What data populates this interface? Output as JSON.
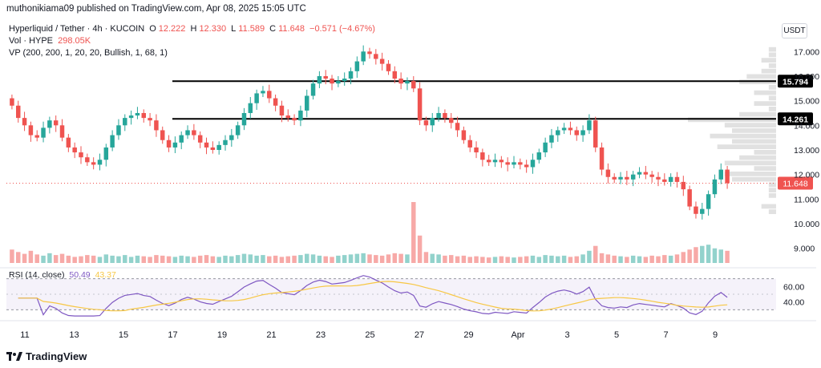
{
  "publisher_line": "muthonikiama09 published on TradingView.com, Apr 08, 2025 15:05 UTC",
  "legend": {
    "symbol": "Hyperliquid / Tether · 4h · KUCOIN",
    "o_label": "O",
    "o_value": "12.222",
    "h_label": "H",
    "h_value": "12.330",
    "l_label": "L",
    "l_value": "11.589",
    "c_label": "C",
    "c_value": "11.648",
    "change": "−0.571 (−4.67%)",
    "vol_label": "Vol · HYPE",
    "vol_value": "298.05K",
    "vp_label": "VP (200, 200, 1, 20, 20, Bullish, 1, 68, 1)"
  },
  "rsi_legend": {
    "label": "RSI (14, close)",
    "value1": "50.49",
    "value2": "43.37"
  },
  "currency": "USDT",
  "branding": "TradingView",
  "colors": {
    "up": "#26a69a",
    "down": "#ef5350",
    "rsi": "#7e57c2",
    "rsi_ma": "#f7c744",
    "hline": "#000000"
  },
  "chart_data": {
    "type": "candlestick",
    "price_axis": {
      "ticks": [
        "9.000",
        "10.000",
        "11.000",
        "12.000",
        "13.000",
        "14.000",
        "15.000",
        "16.000",
        "17.000"
      ],
      "range": [
        8.6,
        17.4
      ]
    },
    "x_ticks": [
      "11",
      "13",
      "15",
      "17",
      "19",
      "21",
      "23",
      "25",
      "27",
      "29",
      "Apr",
      "3",
      "5",
      "7",
      "9"
    ],
    "horizontal_lines": [
      {
        "price": 15.794,
        "label": "15.794"
      },
      {
        "price": 14.261,
        "label": "14.261"
      }
    ],
    "last_price_label": "11.648",
    "rsi_axis": {
      "ticks": [
        "40.00",
        "60.00"
      ],
      "range": [
        20,
        80
      ],
      "band": [
        30,
        70
      ]
    },
    "closes": [
      14.8,
      14.3,
      14.0,
      13.6,
      13.5,
      13.9,
      14.2,
      14.0,
      13.5,
      13.1,
      12.9,
      12.7,
      12.5,
      12.4,
      12.6,
      13.1,
      13.6,
      14.0,
      14.3,
      14.4,
      14.5,
      14.3,
      14.2,
      13.8,
      13.4,
      13.1,
      13.3,
      13.6,
      13.8,
      13.6,
      13.3,
      13.1,
      13.0,
      13.2,
      13.4,
      13.6,
      14.0,
      14.5,
      14.9,
      15.3,
      15.4,
      15.1,
      14.8,
      14.4,
      14.3,
      14.2,
      14.6,
      15.2,
      15.7,
      16.0,
      15.9,
      15.7,
      15.8,
      15.9,
      16.2,
      16.6,
      17.0,
      16.9,
      16.7,
      16.5,
      16.2,
      15.9,
      15.7,
      15.8,
      15.5,
      14.2,
      14.0,
      14.3,
      14.5,
      14.3,
      14.1,
      13.8,
      13.4,
      13.1,
      12.9,
      12.6,
      12.5,
      12.6,
      12.5,
      12.4,
      12.5,
      12.4,
      12.3,
      12.6,
      12.9,
      13.3,
      13.6,
      13.8,
      13.9,
      13.8,
      13.6,
      13.8,
      14.2,
      13.1,
      12.2,
      11.9,
      11.8,
      11.9,
      11.8,
      12.0,
      12.1,
      12.0,
      11.9,
      11.8,
      11.7,
      11.9,
      11.7,
      11.4,
      10.7,
      10.4,
      10.6,
      11.2,
      11.8,
      12.2,
      11.648
    ],
    "volumes": [
      0.22,
      0.18,
      0.15,
      0.2,
      0.14,
      0.12,
      0.16,
      0.13,
      0.15,
      0.12,
      0.1,
      0.11,
      0.13,
      0.12,
      0.1,
      0.14,
      0.12,
      0.11,
      0.13,
      0.1,
      0.12,
      0.11,
      0.1,
      0.13,
      0.12,
      0.11,
      0.1,
      0.12,
      0.11,
      0.1,
      0.12,
      0.13,
      0.11,
      0.1,
      0.12,
      0.11,
      0.13,
      0.15,
      0.14,
      0.12,
      0.13,
      0.11,
      0.12,
      0.1,
      0.11,
      0.12,
      0.13,
      0.15,
      0.14,
      0.12,
      0.11,
      0.1,
      0.12,
      0.13,
      0.14,
      0.15,
      0.16,
      0.14,
      0.13,
      0.12,
      0.14,
      0.16,
      0.15,
      0.14,
      1.0,
      0.45,
      0.18,
      0.15,
      0.14,
      0.12,
      0.13,
      0.11,
      0.12,
      0.1,
      0.11,
      0.1,
      0.09,
      0.1,
      0.11,
      0.1,
      0.09,
      0.1,
      0.11,
      0.12,
      0.1,
      0.13,
      0.12,
      0.11,
      0.12,
      0.1,
      0.11,
      0.14,
      0.2,
      0.28,
      0.16,
      0.14,
      0.12,
      0.11,
      0.1,
      0.12,
      0.11,
      0.1,
      0.12,
      0.11,
      0.13,
      0.12,
      0.14,
      0.18,
      0.22,
      0.26,
      0.28,
      0.3,
      0.24,
      0.22,
      0.2
    ]
  }
}
